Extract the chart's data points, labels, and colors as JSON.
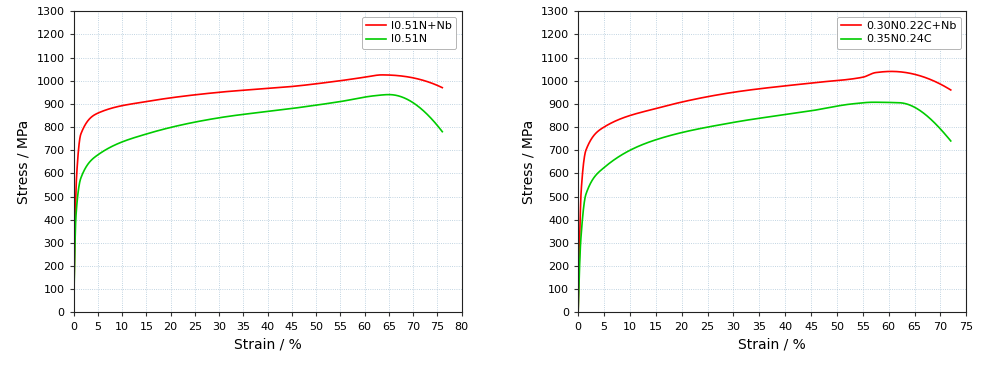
{
  "left": {
    "xlabel": "Strain / %",
    "ylabel": "Stress / MPa",
    "xlim": [
      0,
      80
    ],
    "ylim": [
      0,
      1300
    ],
    "xticks": [
      0,
      5,
      10,
      15,
      20,
      25,
      30,
      35,
      40,
      45,
      50,
      55,
      60,
      65,
      70,
      75,
      80
    ],
    "yticks": [
      0,
      100,
      200,
      300,
      400,
      500,
      600,
      700,
      800,
      900,
      1000,
      1100,
      1200,
      1300
    ],
    "series": [
      {
        "label": "l0.51N+Nb",
        "color": "#ff0000",
        "ctrl_x": [
          0.0,
          0.6,
          1.5,
          5.0,
          15.0,
          30.0,
          45.0,
          55.0,
          60.0,
          63.5,
          76.0
        ],
        "ctrl_y": [
          0,
          580,
          770,
          860,
          910,
          950,
          975,
          1000,
          1015,
          1025,
          970
        ]
      },
      {
        "label": "l0.51N",
        "color": "#00cc00",
        "ctrl_x": [
          0.0,
          0.5,
          1.5,
          5.0,
          15.0,
          30.0,
          45.0,
          55.0,
          62.0,
          65.0,
          76.0
        ],
        "ctrl_y": [
          0,
          420,
          580,
          680,
          770,
          840,
          880,
          910,
          935,
          940,
          780
        ]
      }
    ]
  },
  "right": {
    "xlabel": "Strain / %",
    "ylabel": "Stress / MPa",
    "xlim": [
      0,
      75
    ],
    "ylim": [
      0,
      1300
    ],
    "xticks": [
      0,
      5,
      10,
      15,
      20,
      25,
      30,
      35,
      40,
      45,
      50,
      55,
      60,
      65,
      70,
      75
    ],
    "yticks": [
      0,
      100,
      200,
      300,
      400,
      500,
      600,
      700,
      800,
      900,
      1000,
      1100,
      1200,
      1300
    ],
    "series": [
      {
        "label": "0.30N0.22C+Nb",
        "color": "#ff0000",
        "ctrl_x": [
          0.0,
          0.6,
          1.5,
          5.0,
          15.0,
          30.0,
          45.0,
          55.0,
          57.5,
          60.5,
          72.0
        ],
        "ctrl_y": [
          0,
          530,
          700,
          800,
          880,
          950,
          990,
          1015,
          1035,
          1040,
          960
        ]
      },
      {
        "label": "0.35N0.24C",
        "color": "#00cc00",
        "ctrl_x": [
          0.0,
          0.5,
          1.5,
          5.0,
          15.0,
          30.0,
          45.0,
          53.0,
          57.0,
          62.0,
          72.0
        ],
        "ctrl_y": [
          0,
          310,
          510,
          625,
          745,
          820,
          870,
          900,
          907,
          905,
          740
        ]
      }
    ]
  },
  "background_color": "#ffffff",
  "grid_color": "#adc6d8",
  "grid_linestyle": ":",
  "legend_fontsize": 8,
  "tick_fontsize": 8,
  "label_fontsize": 10
}
